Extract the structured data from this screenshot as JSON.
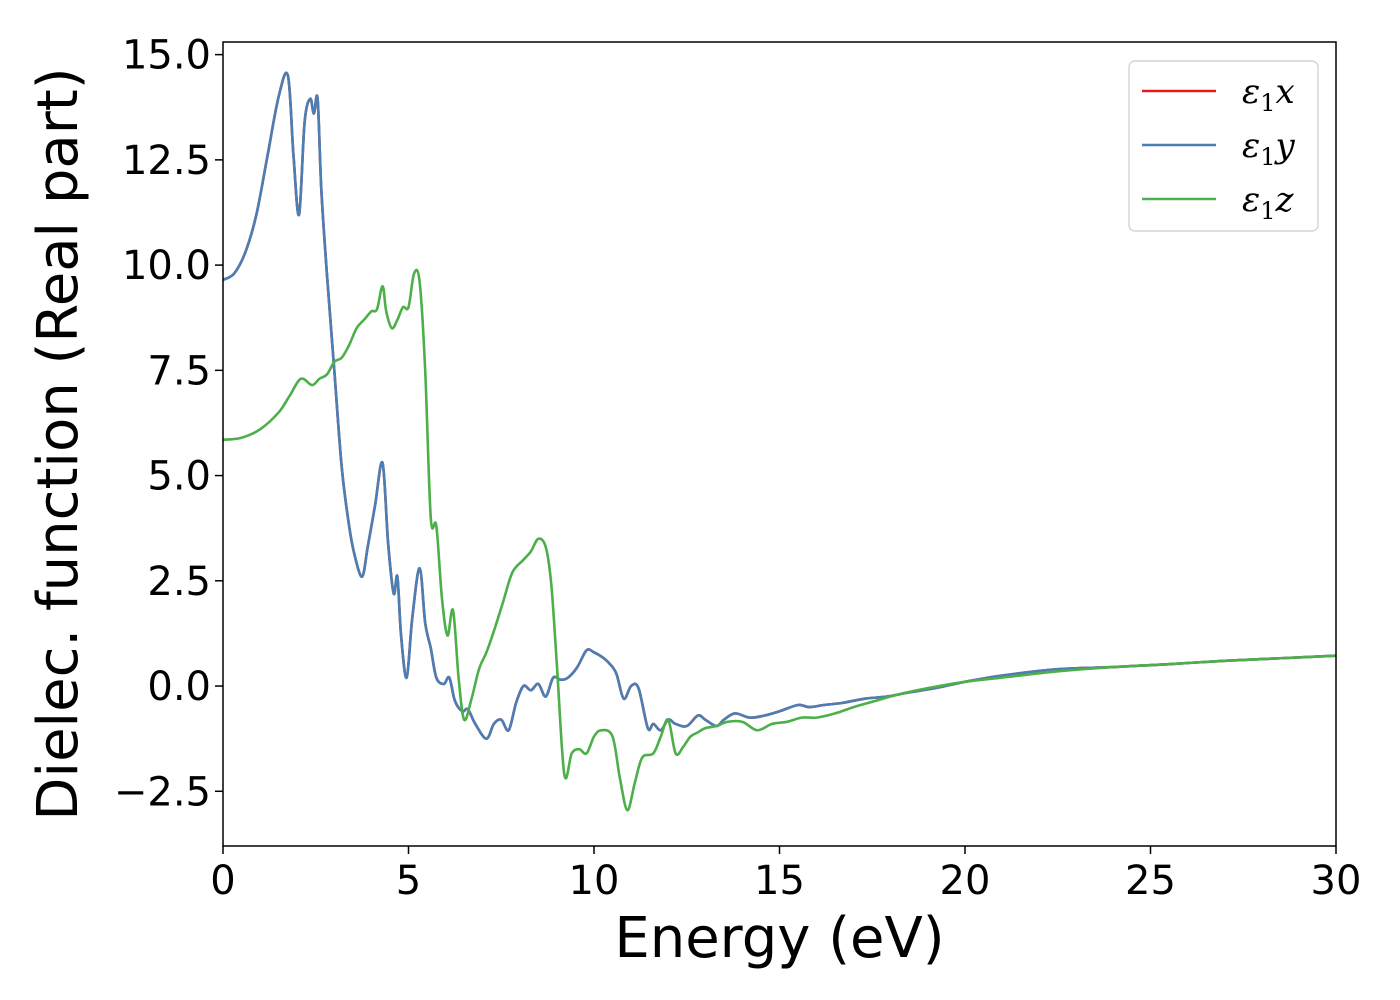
{
  "chart_data": {
    "type": "line",
    "title": "",
    "xlabel": "Energy (eV)",
    "ylabel": "Dielec. function (Real part)",
    "xlim": [
      0,
      30
    ],
    "ylim": [
      -3.8,
      15.3
    ],
    "xticks": [
      0,
      5,
      10,
      15,
      20,
      25,
      30
    ],
    "xtick_labels": [
      "0",
      "5",
      "10",
      "15",
      "20",
      "25",
      "30"
    ],
    "yticks": [
      -2.5,
      0,
      2.5,
      5,
      7.5,
      10,
      12.5,
      15
    ],
    "ytick_labels": [
      "−2.5",
      "0.0",
      "2.5",
      "5.0",
      "7.5",
      "10.0",
      "12.5",
      "15.0"
    ],
    "grid": false,
    "legend_position": "top-right",
    "series": [
      {
        "name": "ε₁x",
        "legend_main": "ε",
        "legend_sub": "1",
        "legend_tail": "x",
        "color": "#e41a1c",
        "x": [
          0,
          0.3,
          0.6,
          0.9,
          1.2,
          1.5,
          1.75,
          1.9,
          2.05,
          2.2,
          2.35,
          2.45,
          2.55,
          2.65,
          2.8,
          3.0,
          3.2,
          3.4,
          3.55,
          3.75,
          3.9,
          4.1,
          4.3,
          4.45,
          4.6,
          4.7,
          4.8,
          4.95,
          5.1,
          5.3,
          5.45,
          5.6,
          5.75,
          5.95,
          6.1,
          6.25,
          6.45,
          6.6,
          6.8,
          7.1,
          7.3,
          7.5,
          7.7,
          7.9,
          8.1,
          8.3,
          8.5,
          8.7,
          8.9,
          9.1,
          9.3,
          9.55,
          9.8,
          10.0,
          10.2,
          10.4,
          10.6,
          10.8,
          11.0,
          11.2,
          11.45,
          11.6,
          11.8,
          12.0,
          12.2,
          12.5,
          12.8,
          13.0,
          13.3,
          13.5,
          13.8,
          14.2,
          14.6,
          15.0,
          15.5,
          15.8,
          16.2,
          16.7,
          17.3,
          17.9,
          18.5,
          19.2,
          20.0,
          21.0,
          22.5,
          24.0,
          25.5,
          27.0,
          28.5,
          30.0
        ],
        "y": [
          9.65,
          9.8,
          10.3,
          11.2,
          12.6,
          14.0,
          14.5,
          12.6,
          11.2,
          13.4,
          13.95,
          13.6,
          13.95,
          11.8,
          9.8,
          7.5,
          5.2,
          3.8,
          3.1,
          2.6,
          3.3,
          4.3,
          5.3,
          3.4,
          2.2,
          2.6,
          1.2,
          0.2,
          1.6,
          2.8,
          1.5,
          0.9,
          0.2,
          0.05,
          0.2,
          -0.35,
          -0.6,
          -0.55,
          -0.9,
          -1.25,
          -0.9,
          -0.8,
          -1.05,
          -0.4,
          0.0,
          -0.1,
          0.05,
          -0.25,
          0.2,
          0.15,
          0.2,
          0.45,
          0.85,
          0.8,
          0.7,
          0.55,
          0.3,
          -0.3,
          0.0,
          -0.05,
          -1.0,
          -0.9,
          -1.05,
          -0.8,
          -0.9,
          -0.95,
          -0.7,
          -0.8,
          -0.95,
          -0.8,
          -0.65,
          -0.75,
          -0.7,
          -0.6,
          -0.45,
          -0.5,
          -0.45,
          -0.4,
          -0.3,
          -0.25,
          -0.15,
          -0.05,
          0.1,
          0.25,
          0.4,
          0.45,
          0.52,
          0.6,
          0.66,
          0.72
        ]
      },
      {
        "name": "ε₁y",
        "legend_main": "ε",
        "legend_sub": "1",
        "legend_tail": "y",
        "color": "#4a7fb5",
        "x": [
          0,
          0.3,
          0.6,
          0.9,
          1.2,
          1.5,
          1.75,
          1.9,
          2.05,
          2.2,
          2.35,
          2.45,
          2.55,
          2.65,
          2.8,
          3.0,
          3.2,
          3.4,
          3.55,
          3.75,
          3.9,
          4.1,
          4.3,
          4.45,
          4.6,
          4.7,
          4.8,
          4.95,
          5.1,
          5.3,
          5.45,
          5.6,
          5.75,
          5.95,
          6.1,
          6.25,
          6.45,
          6.6,
          6.8,
          7.1,
          7.3,
          7.5,
          7.7,
          7.9,
          8.1,
          8.3,
          8.5,
          8.7,
          8.9,
          9.1,
          9.3,
          9.55,
          9.8,
          10.0,
          10.2,
          10.4,
          10.6,
          10.8,
          11.0,
          11.2,
          11.45,
          11.6,
          11.8,
          12.0,
          12.2,
          12.5,
          12.8,
          13.0,
          13.3,
          13.5,
          13.8,
          14.2,
          14.6,
          15.0,
          15.5,
          15.8,
          16.2,
          16.7,
          17.3,
          17.9,
          18.5,
          19.2,
          20.0,
          21.0,
          22.5,
          24.0,
          25.5,
          27.0,
          28.5,
          30.0
        ],
        "y": [
          9.65,
          9.8,
          10.3,
          11.2,
          12.6,
          14.0,
          14.5,
          12.6,
          11.2,
          13.4,
          13.95,
          13.6,
          13.95,
          11.8,
          9.8,
          7.5,
          5.2,
          3.8,
          3.1,
          2.6,
          3.3,
          4.3,
          5.3,
          3.4,
          2.2,
          2.6,
          1.2,
          0.2,
          1.6,
          2.8,
          1.5,
          0.9,
          0.2,
          0.05,
          0.2,
          -0.35,
          -0.6,
          -0.55,
          -0.9,
          -1.25,
          -0.9,
          -0.8,
          -1.05,
          -0.4,
          0.0,
          -0.1,
          0.05,
          -0.25,
          0.2,
          0.15,
          0.2,
          0.45,
          0.85,
          0.8,
          0.7,
          0.55,
          0.3,
          -0.3,
          0.0,
          -0.05,
          -1.0,
          -0.9,
          -1.05,
          -0.8,
          -0.9,
          -0.95,
          -0.7,
          -0.8,
          -0.95,
          -0.8,
          -0.65,
          -0.75,
          -0.7,
          -0.6,
          -0.45,
          -0.5,
          -0.45,
          -0.4,
          -0.3,
          -0.25,
          -0.15,
          -0.05,
          0.1,
          0.25,
          0.4,
          0.45,
          0.52,
          0.6,
          0.66,
          0.72
        ]
      },
      {
        "name": "ε₁z",
        "legend_main": "ε",
        "legend_sub": "1",
        "legend_tail": "z",
        "color": "#4daf4a",
        "x": [
          0,
          0.5,
          1.0,
          1.5,
          1.8,
          2.1,
          2.4,
          2.6,
          2.8,
          3.0,
          3.2,
          3.4,
          3.6,
          3.8,
          4.0,
          4.15,
          4.3,
          4.4,
          4.55,
          4.7,
          4.85,
          5.0,
          5.15,
          5.3,
          5.45,
          5.6,
          5.75,
          5.9,
          6.05,
          6.2,
          6.35,
          6.5,
          6.7,
          6.9,
          7.1,
          7.3,
          7.55,
          7.8,
          8.1,
          8.3,
          8.5,
          8.7,
          8.85,
          9.0,
          9.2,
          9.4,
          9.6,
          9.8,
          10.0,
          10.2,
          10.5,
          10.7,
          10.9,
          11.1,
          11.3,
          11.6,
          11.8,
          12.0,
          12.2,
          12.4,
          12.6,
          12.8,
          13.0,
          13.3,
          13.6,
          14.0,
          14.4,
          14.8,
          15.2,
          15.6,
          16.0,
          16.5,
          17.0,
          17.6,
          18.2,
          19.0,
          20.0,
          21.0,
          22.5,
          24.0,
          25.5,
          27.0,
          28.5,
          30.0
        ],
        "y": [
          5.85,
          5.9,
          6.1,
          6.5,
          6.9,
          7.3,
          7.15,
          7.3,
          7.4,
          7.7,
          7.8,
          8.1,
          8.5,
          8.7,
          8.9,
          8.95,
          9.5,
          8.9,
          8.5,
          8.7,
          9.0,
          9.0,
          9.8,
          9.6,
          7.5,
          4.0,
          3.8,
          2.1,
          1.2,
          1.8,
          0.2,
          -0.8,
          -0.3,
          0.4,
          0.8,
          1.3,
          2.0,
          2.7,
          3.0,
          3.2,
          3.5,
          3.3,
          2.4,
          0.5,
          -2.1,
          -1.6,
          -1.5,
          -1.6,
          -1.2,
          -1.05,
          -1.2,
          -2.2,
          -2.95,
          -2.3,
          -1.7,
          -1.6,
          -1.2,
          -0.8,
          -1.6,
          -1.45,
          -1.2,
          -1.1,
          -1.0,
          -0.95,
          -0.85,
          -0.85,
          -1.05,
          -0.9,
          -0.85,
          -0.75,
          -0.75,
          -0.65,
          -0.5,
          -0.35,
          -0.2,
          -0.05,
          0.1,
          0.2,
          0.35,
          0.45,
          0.52,
          0.6,
          0.66,
          0.72
        ]
      }
    ]
  }
}
